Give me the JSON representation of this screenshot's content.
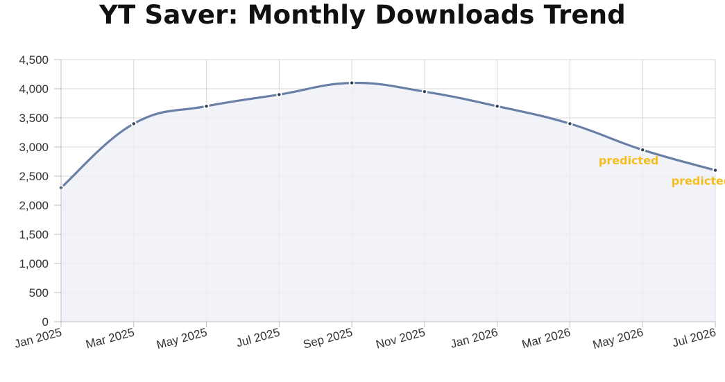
{
  "chart_data": {
    "type": "line",
    "title": "YT Saver: Monthly Downloads Trend",
    "xlabel": "",
    "ylabel": "",
    "ylim": [
      0,
      4500
    ],
    "y_ticks": [
      0,
      500,
      1000,
      1500,
      2000,
      2500,
      3000,
      3500,
      4000,
      4500
    ],
    "y_tick_labels": [
      "0",
      "500",
      "1,000",
      "1,500",
      "2,000",
      "2,500",
      "3,000",
      "3,500",
      "4,000",
      "4,500"
    ],
    "categories": [
      "Jan 2025",
      "Mar 2025",
      "May 2025",
      "Jul 2025",
      "Sep 2025",
      "Nov 2025",
      "Jan 2026",
      "Mar 2026",
      "May 2026",
      "Jul 2026"
    ],
    "series": [
      {
        "values": [
          2300,
          3400,
          3700,
          3900,
          4100,
          3950,
          3700,
          3400,
          2950,
          2600
        ],
        "color": "#6a7fa6",
        "fill": true,
        "smooth": true
      }
    ],
    "annotations": [
      {
        "category": "May 2026",
        "text": "predicted",
        "color": "#f5be1e"
      },
      {
        "category": "Jul 2026",
        "text": "predicted",
        "color": "#f5be1e"
      }
    ],
    "grid": true,
    "legend": "none"
  }
}
